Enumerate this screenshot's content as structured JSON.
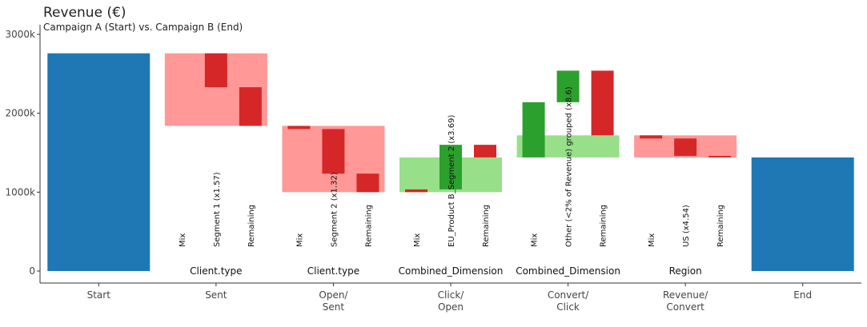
{
  "chart_data": {
    "type": "waterfall",
    "title": "Revenue (€)",
    "subtitle": "Campaign A (Start) vs. Campaign B (End)",
    "ylim": [
      0,
      3000
    ],
    "yticks": [
      0,
      1000,
      2000,
      3000
    ],
    "ytick_labels": [
      "0",
      "1000k",
      "2000k",
      "3000k"
    ],
    "colors": {
      "total": "#1f77b4",
      "neg_group": "#ff9896",
      "neg_item": "#d62728",
      "pos_group": "#98df8a",
      "pos_item": "#2ca02c"
    },
    "totals": [
      {
        "category": "Start",
        "value": 2760
      },
      {
        "category": "End",
        "value": 1440
      }
    ],
    "steps": [
      {
        "category": "Sent",
        "dimension": "Client.type",
        "group_start": 2760,
        "group_end": 1840,
        "components": [
          {
            "label": "Mix",
            "start": 2760,
            "end": 2760
          },
          {
            "label": "Segment 1 (x1.57)",
            "start": 2760,
            "end": 2330
          },
          {
            "label": "Remaining",
            "start": 2330,
            "end": 1840
          }
        ]
      },
      {
        "category": "Open/\nSent",
        "dimension": "Client.type",
        "group_start": 1840,
        "group_end": 1000,
        "components": [
          {
            "label": "Mix",
            "start": 1840,
            "end": 1800
          },
          {
            "label": "Segment 2 (x1.32)",
            "start": 1800,
            "end": 1235
          },
          {
            "label": "Remaining",
            "start": 1235,
            "end": 1000
          }
        ]
      },
      {
        "category": "Click/\nOpen",
        "dimension": "Combined_Dimension",
        "group_start": 1000,
        "group_end": 1440,
        "components": [
          {
            "label": "Mix",
            "start": 1035,
            "end": 1000
          },
          {
            "label": "EU_Product B_Segment 2 (x3.69)",
            "start": 1035,
            "end": 1600
          },
          {
            "label": "Remaining",
            "start": 1600,
            "end": 1440
          }
        ]
      },
      {
        "category": "Convert/\nClick",
        "dimension": "Combined_Dimension",
        "group_start": 1440,
        "group_end": 1720,
        "components": [
          {
            "label": "Mix",
            "start": 1440,
            "end": 2140
          },
          {
            "label": "Other (<2% of Revenue) grouped (x8.6)",
            "start": 2140,
            "end": 2540
          },
          {
            "label": "Remaining",
            "start": 2540,
            "end": 1720
          }
        ]
      },
      {
        "category": "Revenue/\nConvert",
        "dimension": "Region",
        "group_start": 1720,
        "group_end": 1440,
        "components": [
          {
            "label": "Mix",
            "start": 1720,
            "end": 1680
          },
          {
            "label": "US (x4.54)",
            "start": 1680,
            "end": 1460
          },
          {
            "label": "Remaining",
            "start": 1460,
            "end": 1440
          }
        ]
      }
    ]
  }
}
